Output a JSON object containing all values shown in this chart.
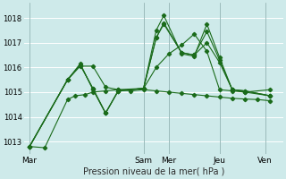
{
  "xlabel": "Pression niveau de la mer( hPa )",
  "background_color": "#ceeaea",
  "grid_color": "#b8d8d8",
  "line_color": "#1a6b1a",
  "ylim": [
    1012.5,
    1018.6
  ],
  "yticks": [
    1013,
    1014,
    1015,
    1016,
    1017,
    1018
  ],
  "xtick_labels": [
    "Mar",
    "Sam",
    "Mer",
    "Jeu",
    "Ven"
  ],
  "xlim": [
    -0.2,
    10.0
  ],
  "vlines": [
    0.0,
    4.5,
    5.5,
    7.5,
    9.3
  ],
  "series": [
    {
      "x": [
        0.0,
        0.6,
        1.5,
        1.8,
        2.2,
        2.5,
        3.0,
        3.5,
        4.0,
        4.5,
        5.0,
        5.5,
        6.0,
        6.5,
        7.0,
        7.5,
        8.0,
        8.5,
        9.0,
        9.5
      ],
      "y": [
        1012.8,
        1012.75,
        1014.7,
        1014.85,
        1014.9,
        1015.0,
        1015.05,
        1015.1,
        1015.05,
        1015.1,
        1015.05,
        1015.0,
        1014.95,
        1014.9,
        1014.85,
        1014.8,
        1014.75,
        1014.72,
        1014.7,
        1014.65
      ]
    },
    {
      "x": [
        0.0,
        1.5,
        2.0,
        2.5,
        3.0,
        3.5,
        4.5,
        5.0,
        5.5,
        6.0,
        6.5,
        7.0,
        7.5,
        8.0,
        8.5,
        9.5
      ],
      "y": [
        1012.8,
        1015.5,
        1016.05,
        1016.05,
        1015.2,
        1015.1,
        1015.15,
        1016.0,
        1016.55,
        1016.9,
        1017.35,
        1016.65,
        1015.1,
        1015.05,
        1015.0,
        1015.1
      ]
    },
    {
      "x": [
        0.0,
        1.5,
        2.0,
        2.5,
        3.0,
        3.5,
        4.5,
        5.0,
        5.3,
        6.0,
        6.5,
        7.0,
        7.5,
        8.0,
        8.5,
        9.5
      ],
      "y": [
        1012.8,
        1015.5,
        1016.15,
        1015.1,
        1014.15,
        1015.05,
        1015.15,
        1017.2,
        1017.8,
        1016.6,
        1016.5,
        1017.0,
        1016.2,
        1015.1,
        1015.0,
        1014.85
      ]
    },
    {
      "x": [
        0.0,
        1.5,
        2.0,
        2.5,
        3.0,
        3.5,
        4.5,
        5.0,
        5.3,
        6.0,
        6.5,
        7.0,
        7.5,
        8.0,
        8.5,
        9.5
      ],
      "y": [
        1012.8,
        1015.5,
        1016.1,
        1015.15,
        1014.15,
        1015.05,
        1015.15,
        1017.5,
        1018.1,
        1016.55,
        1016.45,
        1017.75,
        1016.4,
        1015.1,
        1015.05,
        1014.85
      ]
    },
    {
      "x": [
        0.0,
        1.5,
        2.0,
        2.5,
        3.0,
        3.5,
        4.5,
        5.0,
        5.3,
        6.0,
        6.5,
        7.0,
        7.5,
        8.0,
        8.5,
        9.5
      ],
      "y": [
        1012.8,
        1015.5,
        1016.1,
        1015.15,
        1014.15,
        1015.05,
        1015.15,
        1017.2,
        1017.75,
        1016.6,
        1016.5,
        1017.45,
        1016.3,
        1015.1,
        1015.05,
        1014.85
      ]
    }
  ],
  "xtick_positions": [
    0.0,
    4.5,
    5.5,
    7.5,
    9.3
  ]
}
